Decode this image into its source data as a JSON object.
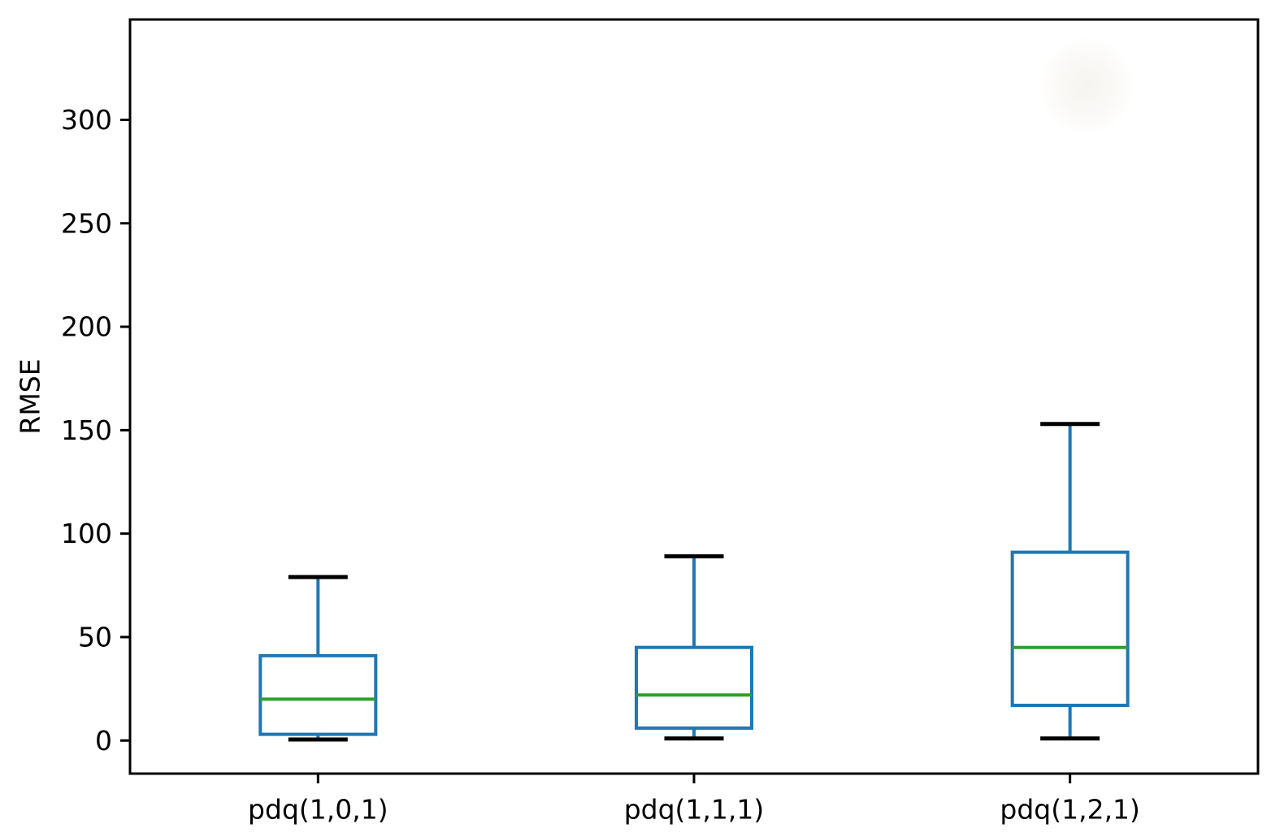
{
  "chart_data": {
    "type": "boxplot",
    "title": "",
    "xlabel": "",
    "ylabel": "RMSE",
    "ylim": [
      -16,
      348.5
    ],
    "yticks": [
      0,
      50,
      100,
      150,
      200,
      250,
      300
    ],
    "grid": false,
    "legend": null,
    "categories": [
      "pdq(1,0,1)",
      "pdq(1,1,1)",
      "pdq(1,2,1)"
    ],
    "series": [
      {
        "label": "pdq(1,0,1)",
        "whislo": 0.5,
        "q1": 3,
        "med": 20,
        "q3": 41,
        "whishi": 79,
        "fliers": []
      },
      {
        "label": "pdq(1,1,1)",
        "whislo": 1,
        "q1": 6,
        "med": 22,
        "q3": 45,
        "whishi": 89,
        "fliers": []
      },
      {
        "label": "pdq(1,2,1)",
        "whislo": 1,
        "q1": 17,
        "med": 45,
        "q3": 91,
        "whishi": 153,
        "fliers": []
      }
    ],
    "colors": {
      "box": "#1f77b4",
      "whisker": "#1f77b4",
      "cap": "#000000",
      "median": "#2ca02c",
      "axis": "#000000",
      "tick_label": "#000000"
    }
  }
}
